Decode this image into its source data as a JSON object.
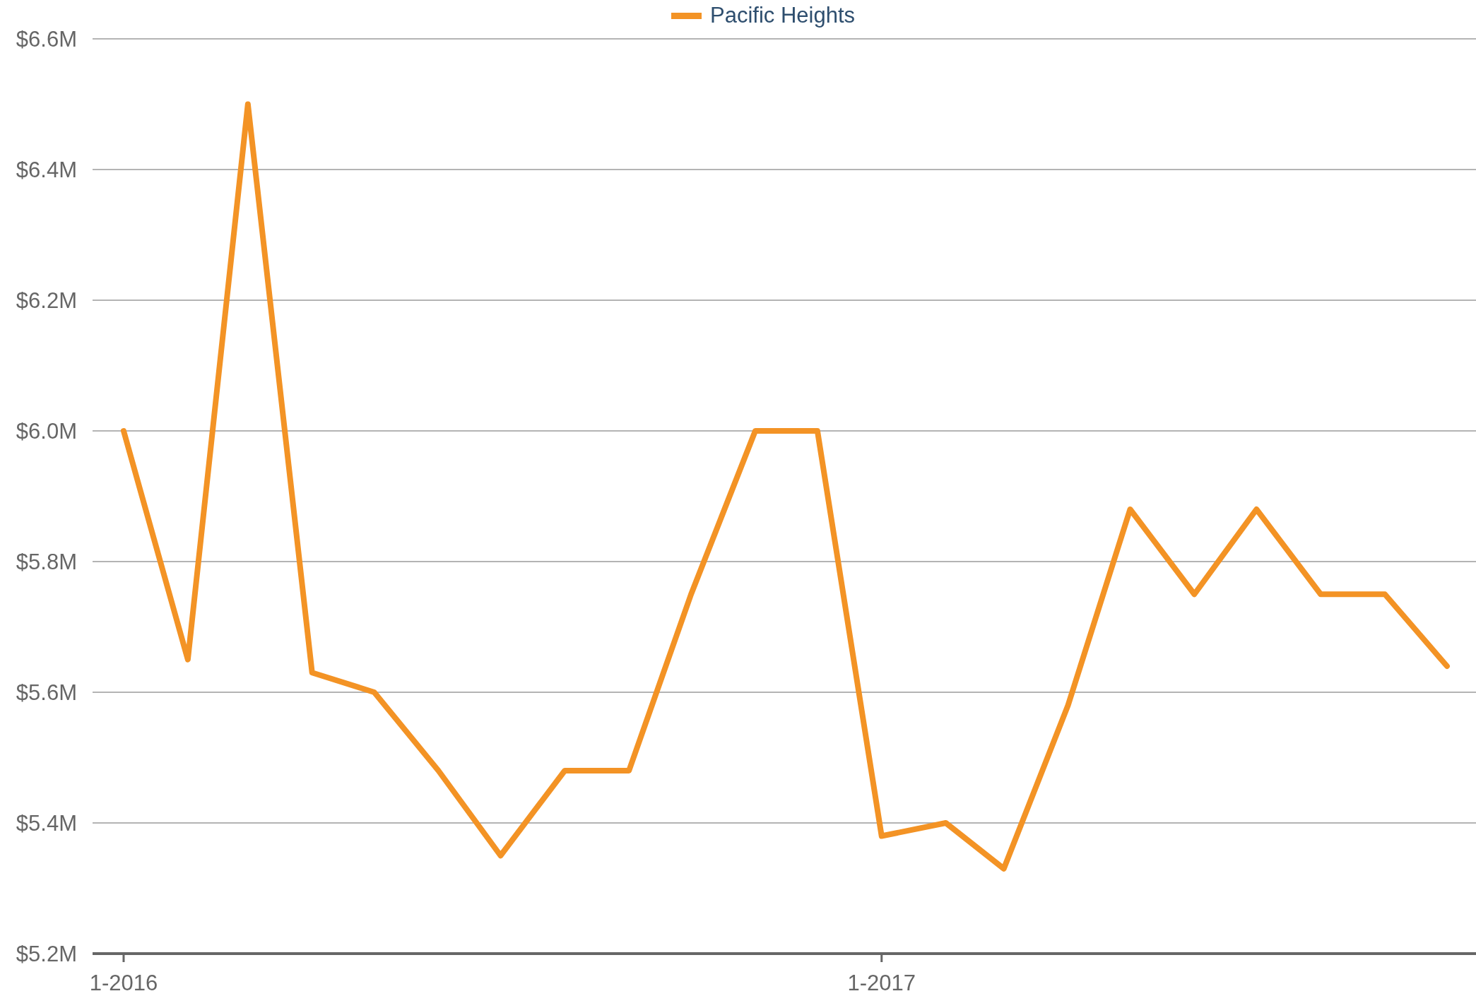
{
  "chart_data": {
    "type": "line",
    "x": [
      "2016-01",
      "2016-02",
      "2016-03",
      "2016-04",
      "2016-05",
      "2016-06",
      "2016-07",
      "2016-08",
      "2016-09",
      "2016-10",
      "2016-11",
      "2016-12",
      "2017-01",
      "2017-02",
      "2017-03",
      "2017-04",
      "2017-05",
      "2017-06",
      "2017-07",
      "2017-08",
      "2017-09",
      "2017-10"
    ],
    "series": [
      {
        "name": "Pacific Heights",
        "color": "#f39325",
        "values": [
          6.0,
          5.65,
          6.5,
          5.63,
          5.6,
          5.48,
          5.35,
          5.48,
          5.48,
          5.75,
          6.0,
          6.0,
          5.38,
          5.4,
          5.33,
          5.58,
          5.88,
          5.75,
          5.88,
          5.75,
          5.75,
          5.64
        ]
      }
    ],
    "xlim": [
      "2015-12-17",
      "2017-10-15"
    ],
    "xticks": [
      {
        "value": "2016-01",
        "label": "1-2016"
      },
      {
        "value": "2017-01",
        "label": "1-2017"
      }
    ],
    "ylim": [
      5.2,
      6.6
    ],
    "yticks": [
      {
        "value": 5.2,
        "label": "$5.2M"
      },
      {
        "value": 5.4,
        "label": "$5.4M"
      },
      {
        "value": 5.6,
        "label": "$5.6M"
      },
      {
        "value": 5.8,
        "label": "$5.8M"
      },
      {
        "value": 6.0,
        "label": "$6.0M"
      },
      {
        "value": 6.2,
        "label": "$6.2M"
      },
      {
        "value": 6.4,
        "label": "$6.4M"
      },
      {
        "value": 6.6,
        "label": "$6.6M"
      }
    ],
    "grid": "y",
    "legend": "top",
    "line_style": "solid"
  }
}
